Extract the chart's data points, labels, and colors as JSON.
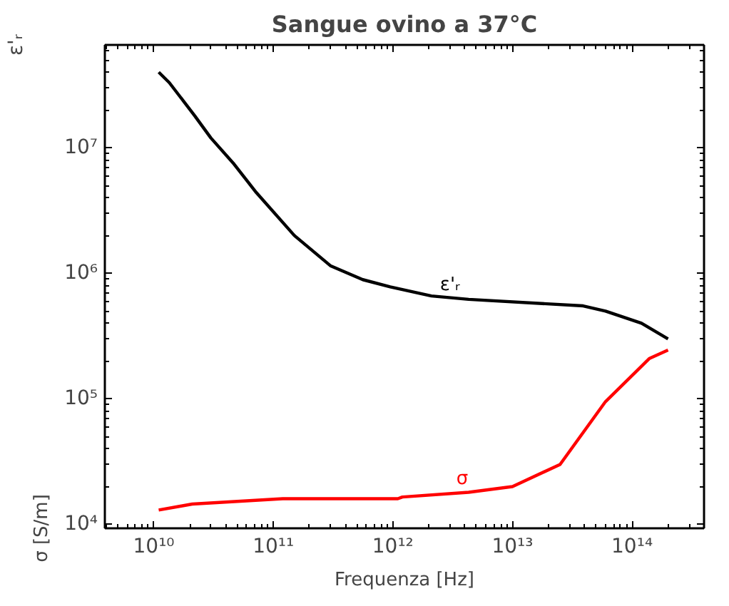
{
  "chart_data": {
    "type": "line",
    "title": "Sangue ovino a 37°C",
    "xlabel": "Frequenza [Hz]",
    "ylabel": "σ [S/m]",
    "log": "xy",
    "grid": false,
    "line_style": "solid",
    "marker": "none",
    "xlim": [
      3900000000.0,
      400000000000000.0
    ],
    "ylim": [
      9300.0,
      66000000.0
    ],
    "xticks": [
      {
        "value": 10000000000.0,
        "label": "10¹⁰"
      },
      {
        "value": 100000000000.0,
        "label": "10¹¹"
      },
      {
        "value": 1000000000000.0,
        "label": "10¹²"
      },
      {
        "value": 10000000000000.0,
        "label": "10¹³"
      },
      {
        "value": 100000000000000.0,
        "label": "10¹⁴"
      }
    ],
    "yticks": [
      {
        "value": 10000.0,
        "label": "10⁴"
      },
      {
        "value": 100000.0,
        "label": "10⁵"
      },
      {
        "value": 1000000.0,
        "label": "10⁶"
      },
      {
        "value": 10000000.0,
        "label": "10⁷"
      }
    ],
    "series": [
      {
        "color": "#000000",
        "x": [
          11000000000.0,
          13500000000.0,
          22000000000.0,
          30000000000.0,
          47000000000.0,
          72000000000.0,
          150000000000.0,
          300000000000.0,
          560000000000.0,
          950000000000.0,
          2100000000000.0,
          4300000000000.0,
          39000000000000.0,
          60000000000000.0,
          120000000000000.0,
          200000000000000.0
        ],
        "values": [
          40000000.0,
          33000000.0,
          18000000.0,
          12000000.0,
          7400000.0,
          4400000.0,
          2000000.0,
          1150000.0,
          890000.0,
          780000.0,
          660000.0,
          620000.0,
          550000.0,
          500000.0,
          400000.0,
          300000.0
        ]
      },
      {
        "color": "#ff0000",
        "x": [
          11000000000.0,
          17000000000.0,
          21000000000.0,
          120000000000.0,
          1100000000000.0,
          1200000000000.0,
          4300000000000.0,
          10000000000000.0,
          25000000000000.0,
          60000000000000.0,
          140000000000000.0,
          200000000000000.0
        ],
        "values": [
          13000.0,
          14000.0,
          14500.0,
          16000.0,
          16000.0,
          16500.0,
          18000.0,
          20000.0,
          30000.0,
          95000.0,
          210000.0,
          245000.0
        ]
      }
    ],
    "annotations": [
      "ε'ᵣ",
      {
        "text": "ε'ᵣ",
        "x": 3000000000000.0,
        "y": 630000.0
      },
      {
        "text": "σ",
        "x": 3800000000000.0,
        "y": 18000.0
      }
    ]
  }
}
